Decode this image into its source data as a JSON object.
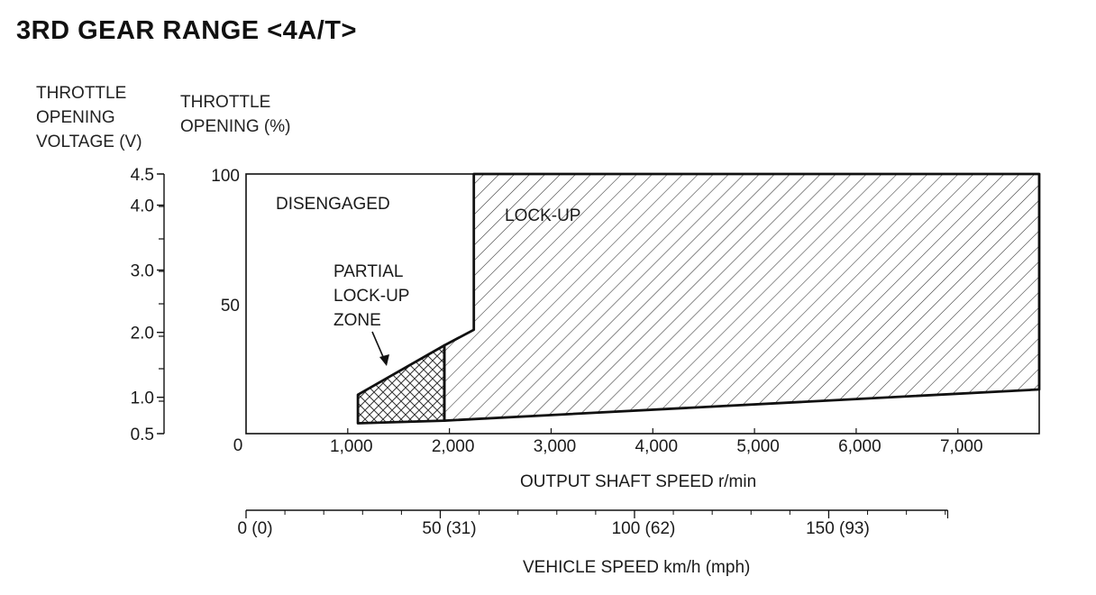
{
  "title": "3RD GEAR RANGE <4A/T>",
  "axes": {
    "voltage_label": [
      "THROTTLE",
      "OPENING",
      "VOLTAGE (V)"
    ],
    "percent_label": [
      "THROTTLE",
      "OPENING (%)"
    ],
    "voltage_ticks": [
      "4.5",
      "4.0",
      "3.0",
      "2.0",
      "1.0",
      "0.5"
    ],
    "percent_ticks": [
      "100",
      "50",
      "0"
    ],
    "xlabel": "OUTPUT SHAFT SPEED r/min",
    "vehicle_label": "VEHICLE SPEED km/h (mph)"
  },
  "zones": {
    "disengaged": "DISENGAGED",
    "lockup": "LOCK-UP",
    "partial": [
      "PARTIAL",
      "LOCK-UP",
      "ZONE"
    ]
  },
  "chart_data": {
    "type": "area",
    "xlabel": "OUTPUT SHAFT SPEED r/min",
    "ylabel": "THROTTLE OPENING (%)",
    "xlim": [
      0,
      7800
    ],
    "ylim": [
      0,
      100
    ],
    "x_ticks": [
      1000,
      2000,
      3000,
      4000,
      5000,
      6000,
      7000
    ],
    "x_tick_labels": [
      "1,000",
      "2,000",
      "3,000",
      "4,000",
      "5,000",
      "6,000",
      "7,000"
    ],
    "y_ticks": [
      0,
      50,
      100
    ],
    "voltage_axis": {
      "label": "THROTTLE OPENING VOLTAGE (V)",
      "ticks": [
        {
          "label": "4.5",
          "percent": 100
        },
        {
          "label": "4.0",
          "percent": 88
        },
        {
          "label": "3.0",
          "percent": 63
        },
        {
          "label": "2.0",
          "percent": 39
        },
        {
          "label": "1.0",
          "percent": 14
        },
        {
          "label": "0.5",
          "percent": 0
        }
      ]
    },
    "vehicle_speed_axis": {
      "label": "VEHICLE SPEED km/h (mph)",
      "ticks": [
        {
          "label": "0 (0)",
          "rpm": 0
        },
        {
          "label": "50 (31)",
          "rpm": 1910
        },
        {
          "label": "100 (62)",
          "rpm": 3820
        },
        {
          "label": "150 (93)",
          "rpm": 5730
        }
      ],
      "minor_step_rpm": 382,
      "max_rpm": 6900
    },
    "series": [
      {
        "name": "LOCK-UP",
        "polygon": [
          [
            1950,
            5
          ],
          [
            1950,
            34
          ],
          [
            2240,
            40
          ],
          [
            2240,
            100
          ],
          [
            7800,
            100
          ],
          [
            7800,
            17
          ]
        ]
      },
      {
        "name": "PARTIAL LOCK-UP ZONE",
        "polygon": [
          [
            1100,
            4
          ],
          [
            1100,
            15
          ],
          [
            1950,
            34
          ],
          [
            1950,
            5
          ]
        ]
      }
    ],
    "regions": [
      "DISENGAGED",
      "PARTIAL LOCK-UP ZONE",
      "LOCK-UP"
    ],
    "grid": false
  }
}
